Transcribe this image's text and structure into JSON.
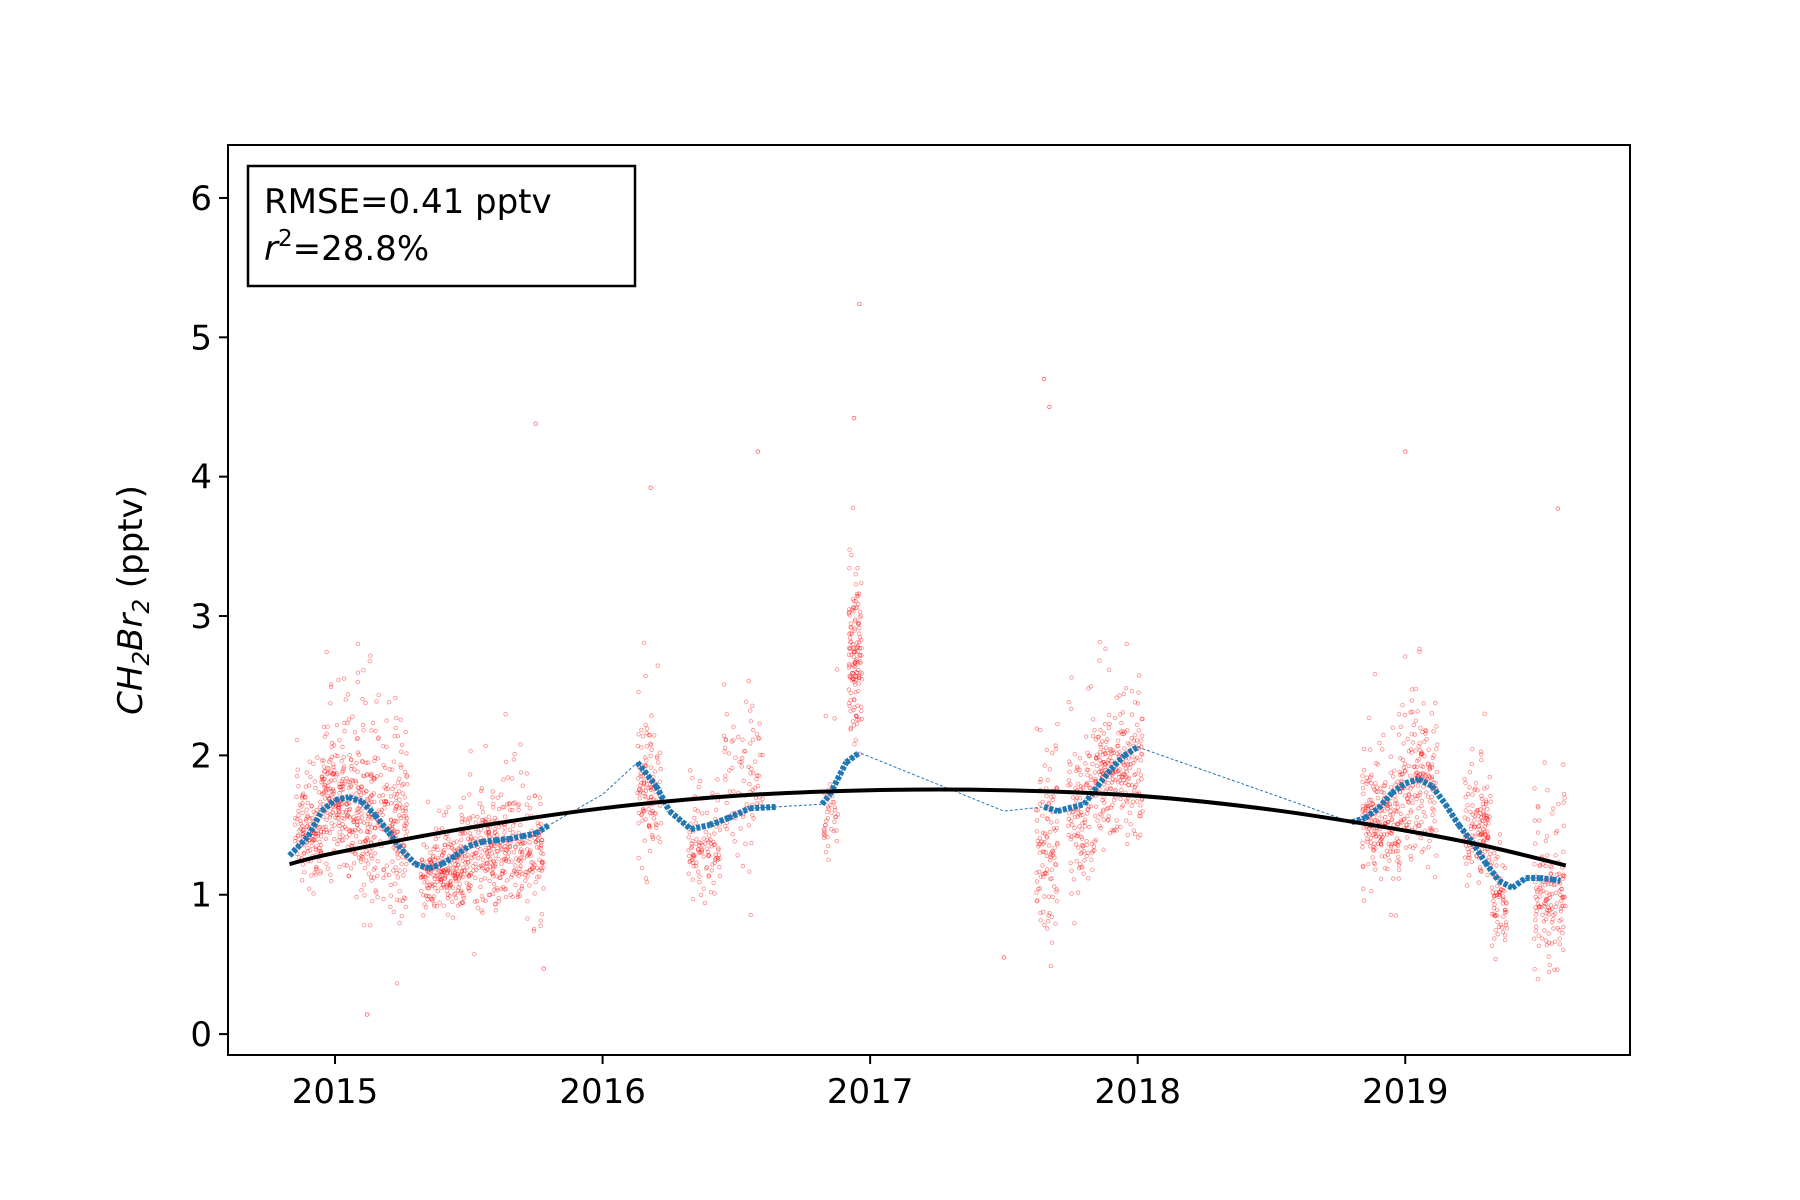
{
  "chart_data": {
    "type": "scatter",
    "xlabel": "",
    "ylabel": {
      "base": "CH",
      "sub1": "2",
      "mid": "Br",
      "sub2": "2",
      "unit": " (pptv)"
    },
    "xlim": [
      2014.6,
      2019.84
    ],
    "ylim": [
      -0.15,
      6.38
    ],
    "x_ticks": [
      {
        "value": 2015,
        "label": "2015"
      },
      {
        "value": 2016,
        "label": "2016"
      },
      {
        "value": 2017,
        "label": "2017"
      },
      {
        "value": 2018,
        "label": "2018"
      },
      {
        "value": 2019,
        "label": "2019"
      }
    ],
    "y_ticks": [
      {
        "value": 0,
        "label": "0"
      },
      {
        "value": 1,
        "label": "1"
      },
      {
        "value": 2,
        "label": "2"
      },
      {
        "value": 3,
        "label": "3"
      },
      {
        "value": 4,
        "label": "4"
      },
      {
        "value": 5,
        "label": "5"
      },
      {
        "value": 6,
        "label": "6"
      }
    ],
    "stats": {
      "rmse": "RMSE=0.41 pptv",
      "r2_symbol": "r",
      "r2_exp": "2",
      "r2_value": "=28.8%"
    },
    "grid": false,
    "legend": "none",
    "colors": {
      "observations": "#ff0000",
      "model": "#1f77b4",
      "trend": "#000000"
    },
    "series": [
      {
        "kind": "observations",
        "clusters": [
          {
            "x": [
              2014.85,
              2014.95
            ],
            "center": 1.45,
            "spread": 0.28,
            "count": 140
          },
          {
            "x": [
              2014.95,
              2015.05
            ],
            "center": 1.65,
            "spread": 0.35,
            "count": 180
          },
          {
            "x": [
              2015.05,
              2015.15
            ],
            "center": 1.55,
            "spread": 0.45,
            "count": 180
          },
          {
            "x": [
              2015.15,
              2015.27
            ],
            "center": 1.45,
            "spread": 0.45,
            "count": 180
          },
          {
            "x": [
              2015.32,
              2015.47
            ],
            "center": 1.15,
            "spread": 0.2,
            "count": 220
          },
          {
            "x": [
              2015.47,
              2015.62
            ],
            "center": 1.25,
            "spread": 0.3,
            "count": 220
          },
          {
            "x": [
              2015.62,
              2015.78
            ],
            "center": 1.3,
            "spread": 0.35,
            "count": 200
          },
          {
            "x": [
              2016.13,
              2016.22
            ],
            "center": 1.75,
            "spread": 0.35,
            "count": 120
          },
          {
            "x": [
              2016.32,
              2016.44
            ],
            "center": 1.3,
            "spread": 0.25,
            "count": 110
          },
          {
            "x": [
              2016.45,
              2016.6
            ],
            "center": 1.75,
            "spread": 0.45,
            "count": 90
          },
          {
            "x": [
              2016.82,
              2016.88
            ],
            "center": 1.6,
            "spread": 0.3,
            "count": 40
          },
          {
            "x": [
              2016.92,
              2016.97
            ],
            "center": 2.7,
            "spread": 0.45,
            "count": 140
          },
          {
            "x": [
              2017.62,
              2017.7
            ],
            "center": 1.3,
            "spread": 0.5,
            "count": 110
          },
          {
            "x": [
              2017.74,
              2017.84
            ],
            "center": 1.55,
            "spread": 0.45,
            "count": 120
          },
          {
            "x": [
              2017.84,
              2018.02
            ],
            "center": 1.85,
            "spread": 0.35,
            "count": 260
          },
          {
            "x": [
              2018.84,
              2018.98
            ],
            "center": 1.5,
            "spread": 0.35,
            "count": 220
          },
          {
            "x": [
              2018.98,
              2019.12
            ],
            "center": 1.75,
            "spread": 0.45,
            "count": 200
          },
          {
            "x": [
              2019.22,
              2019.32
            ],
            "center": 1.45,
            "spread": 0.3,
            "count": 140
          },
          {
            "x": [
              2019.32,
              2019.38
            ],
            "center": 0.95,
            "spread": 0.25,
            "count": 70
          },
          {
            "x": [
              2019.48,
              2019.6
            ],
            "center": 0.95,
            "spread": 0.35,
            "count": 150
          }
        ],
        "outliers": [
          {
            "x": 2015.12,
            "y": 0.14
          },
          {
            "x": 2015.75,
            "y": 4.38
          },
          {
            "x": 2016.18,
            "y": 3.92
          },
          {
            "x": 2016.58,
            "y": 4.18
          },
          {
            "x": 2016.94,
            "y": 4.42
          },
          {
            "x": 2016.96,
            "y": 5.24
          },
          {
            "x": 2017.65,
            "y": 4.7
          },
          {
            "x": 2017.67,
            "y": 4.5
          },
          {
            "x": 2019.0,
            "y": 4.18
          },
          {
            "x": 2019.57,
            "y": 3.77
          },
          {
            "x": 2017.5,
            "y": 0.55
          },
          {
            "x": 2015.78,
            "y": 0.47
          }
        ]
      },
      {
        "kind": "model",
        "x": [
          2014.83,
          2014.9,
          2014.95,
          2015.0,
          2015.05,
          2015.1,
          2015.15,
          2015.2,
          2015.25,
          2015.3,
          2015.35,
          2015.4,
          2015.45,
          2015.5,
          2015.55,
          2015.6,
          2015.65,
          2015.7,
          2015.75,
          2015.8,
          2016.0,
          2016.13,
          2016.2,
          2016.25,
          2016.33,
          2016.4,
          2016.47,
          2016.55,
          2016.65,
          2016.82,
          2016.85,
          2016.91,
          2016.96,
          2017.5,
          2017.65,
          2017.7,
          2017.8,
          2017.85,
          2017.9,
          2017.95,
          2018.0,
          2018.8,
          2018.85,
          2018.9,
          2018.95,
          2019.0,
          2019.05,
          2019.1,
          2019.15,
          2019.2,
          2019.25,
          2019.3,
          2019.35,
          2019.4,
          2019.45,
          2019.5,
          2019.55,
          2019.58
        ],
        "y": [
          1.28,
          1.42,
          1.6,
          1.68,
          1.7,
          1.67,
          1.57,
          1.45,
          1.32,
          1.22,
          1.19,
          1.22,
          1.28,
          1.35,
          1.38,
          1.39,
          1.4,
          1.42,
          1.44,
          1.5,
          1.72,
          1.95,
          1.78,
          1.6,
          1.47,
          1.5,
          1.55,
          1.62,
          1.63,
          1.65,
          1.72,
          1.95,
          2.02,
          1.6,
          1.63,
          1.6,
          1.65,
          1.78,
          1.9,
          2.0,
          2.06,
          1.52,
          1.55,
          1.62,
          1.73,
          1.8,
          1.83,
          1.78,
          1.65,
          1.5,
          1.38,
          1.23,
          1.1,
          1.05,
          1.12,
          1.12,
          1.11,
          1.1
        ]
      },
      {
        "kind": "trend",
        "x": [
          2014.83,
          2015.0,
          2015.5,
          2016.0,
          2016.5,
          2017.0,
          2017.5,
          2018.0,
          2018.5,
          2019.0,
          2019.3,
          2019.6
        ],
        "y": [
          1.22,
          1.3,
          1.48,
          1.62,
          1.71,
          1.75,
          1.75,
          1.71,
          1.61,
          1.46,
          1.35,
          1.21
        ]
      }
    ]
  }
}
